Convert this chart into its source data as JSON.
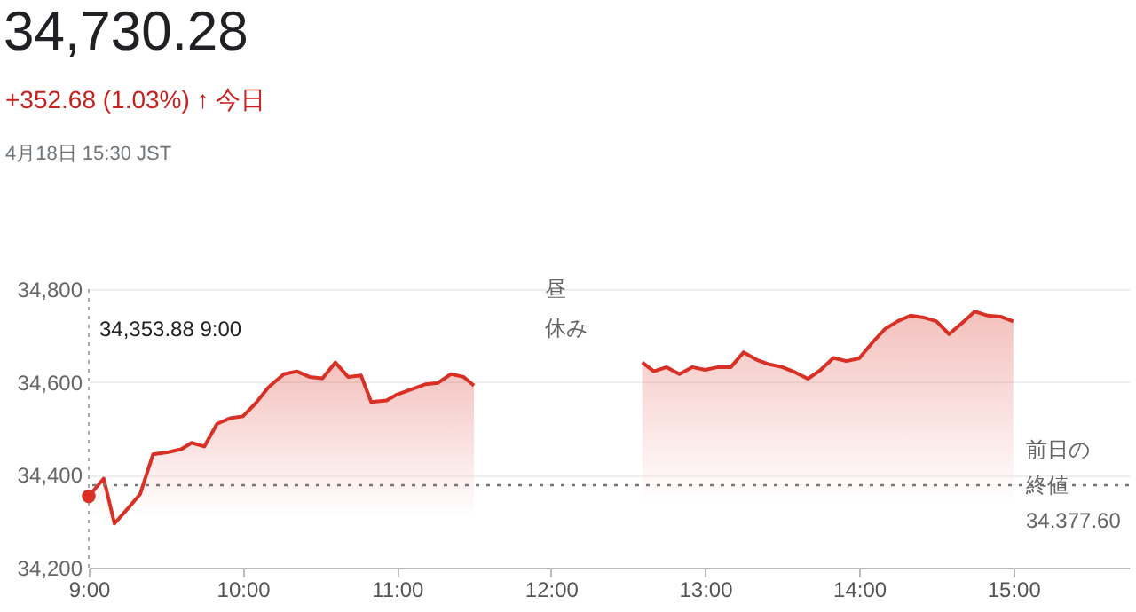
{
  "chart_data": {
    "type": "area",
    "title": "34,730.28",
    "subtitle": "+352.68 (1.03%) ↑ 今日",
    "annotations": [
      "4月18日 15:30 JST",
      "昼休み",
      "34,353.88  9:00"
    ],
    "x": [
      9,
      9.097,
      9.167,
      9.25,
      9.333,
      9.417,
      9.517,
      9.6,
      9.667,
      9.75,
      9.833,
      9.917,
      10,
      10.083,
      10.167,
      10.267,
      10.35,
      10.433,
      10.517,
      10.6,
      10.683,
      10.767,
      10.833,
      10.933,
      11,
      11.1,
      11.183,
      11.267,
      11.35,
      11.433,
      11.5,
      12.05,
      12.592,
      12.667,
      12.75,
      12.833,
      12.917,
      13,
      13.083,
      13.167,
      13.25,
      13.333,
      13.417,
      13.5,
      13.583,
      13.667,
      13.75,
      13.833,
      13.917,
      14,
      14.083,
      14.167,
      14.25,
      14.333,
      14.417,
      14.5,
      14.583,
      14.667,
      14.75,
      14.833,
      14.917,
      15
    ],
    "series": [
      {
        "color": "#d93025",
        "values": [
          34353.88,
          34392,
          34295,
          34326,
          34358,
          34444,
          34449,
          34455,
          34469,
          34461,
          34510,
          34522,
          34526,
          34554,
          34589,
          34617,
          34623,
          34611,
          34608,
          34642,
          34611,
          34614,
          34557,
          34560,
          34573,
          34585,
          34595,
          34598,
          34617,
          34611,
          34592,
          null,
          34642,
          34623,
          34632,
          34617,
          34632,
          34626,
          34632,
          34632,
          34664,
          34648,
          34638,
          34632,
          34621,
          34607,
          34626,
          34652,
          34645,
          34651,
          34684,
          34714,
          34731,
          34743,
          34739,
          34731,
          34703,
          34727,
          34752,
          34743,
          34741,
          34730.28
        ]
      }
    ],
    "xlim": [
      9,
      15.75
    ],
    "xticks": [
      {
        "value": 9,
        "label": "9:00"
      },
      {
        "value": 10,
        "label": "10:00"
      },
      {
        "value": 11,
        "label": "11:00"
      },
      {
        "value": 12,
        "label": "12:00"
      },
      {
        "value": 13,
        "label": "13:00"
      },
      {
        "value": 14,
        "label": "14:00"
      },
      {
        "value": 15,
        "label": "15:00"
      }
    ],
    "ylim": [
      34200,
      34800
    ],
    "yticks": [
      {
        "value": 34200,
        "label": "34,200"
      },
      {
        "value": 34400,
        "label": "34,400"
      },
      {
        "value": 34600,
        "label": "34,600"
      },
      {
        "value": 34800,
        "label": "34,800"
      }
    ],
    "grid": "y",
    "ref_lines": [
      {
        "axis": "y",
        "value": 34377.6,
        "label": "前日の終値\n34,377.60",
        "color": "#777777",
        "line_style": "dotted"
      }
    ]
  }
}
